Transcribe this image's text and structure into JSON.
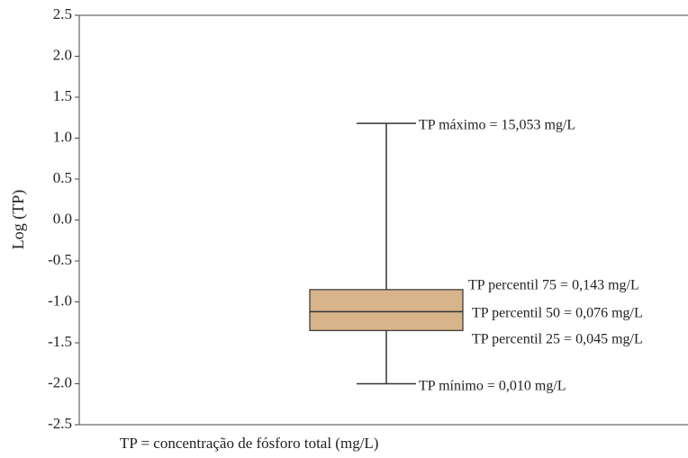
{
  "chart_data": {
    "type": "box",
    "ylabel": "Log (TP)",
    "ylim": [
      -2.5,
      2.5
    ],
    "yticks": [
      2.5,
      {
        "value": 2,
        "label": "2.0"
      },
      1.5,
      {
        "value": 1,
        "label": "1.0"
      },
      0.5,
      {
        "value": 0,
        "label": "0.0"
      },
      -0.5,
      {
        "value": -1,
        "label": "-1.0"
      },
      -1.5,
      {
        "value": -2,
        "label": "-2.0"
      },
      -2.5
    ],
    "box": {
      "min": -2.0,
      "q1": -1.35,
      "median": -1.12,
      "q3": -0.85,
      "max": 1.18,
      "color": "#d8b48a"
    },
    "annotations": [
      "TP máximo  = 15,053 mg/L",
      "TP percentil 75  = 0,143 mg/L",
      "TP percentil 50 = 0,076 mg/L",
      "TP percentil 25 = 0,045 mg/L",
      "TP mínimo  = 0,010 mg/L"
    ],
    "note": "TP =  concentração de fósforo total (mg/L)"
  }
}
